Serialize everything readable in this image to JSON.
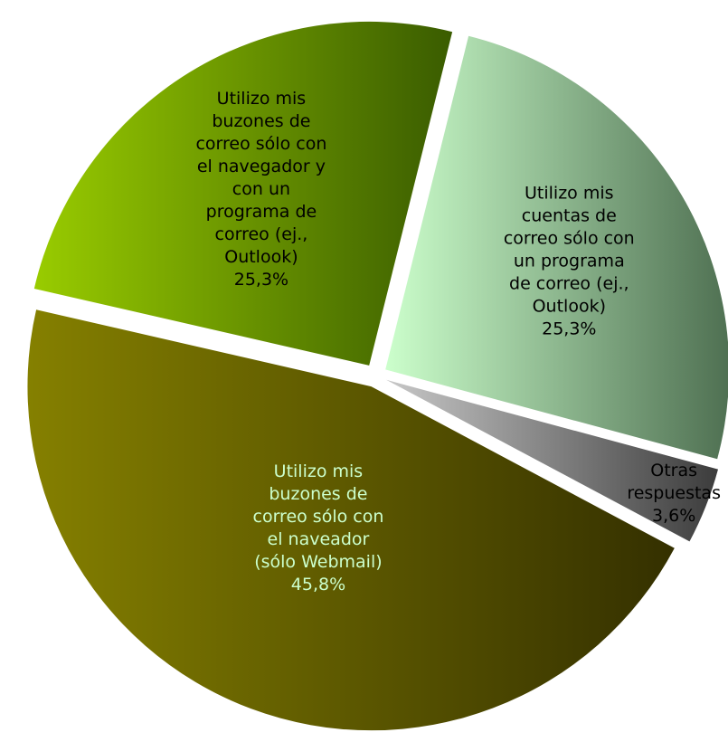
{
  "chart_data": {
    "type": "pie",
    "categories": [
      "Utilizo mis cuentas de correo sólo con un programa de correo (ej., Outlook)",
      "Otras respuestas",
      "Utilizo mis buzones de correo sólo con el naveador (sólo Webmail)",
      "Utilizo mis buzones de correo sólo con el navegador y con un programa de correo (ej., Outlook)"
    ],
    "values": [
      25.3,
      3.6,
      45.8,
      25.3
    ],
    "value_labels": [
      "25,3%",
      "3,6%",
      "45,8%",
      "25,3%"
    ],
    "colors": [
      [
        "#ccffcc",
        "#4f7052"
      ],
      [
        "#c8c8c8",
        "#3c3c3c"
      ],
      [
        "#858000",
        "#343000"
      ],
      [
        "#99cc00",
        "#3a5c00"
      ]
    ],
    "label_colors": [
      "#000000",
      "#000000",
      "#ccffcc",
      "#000000"
    ],
    "exploded": true
  }
}
